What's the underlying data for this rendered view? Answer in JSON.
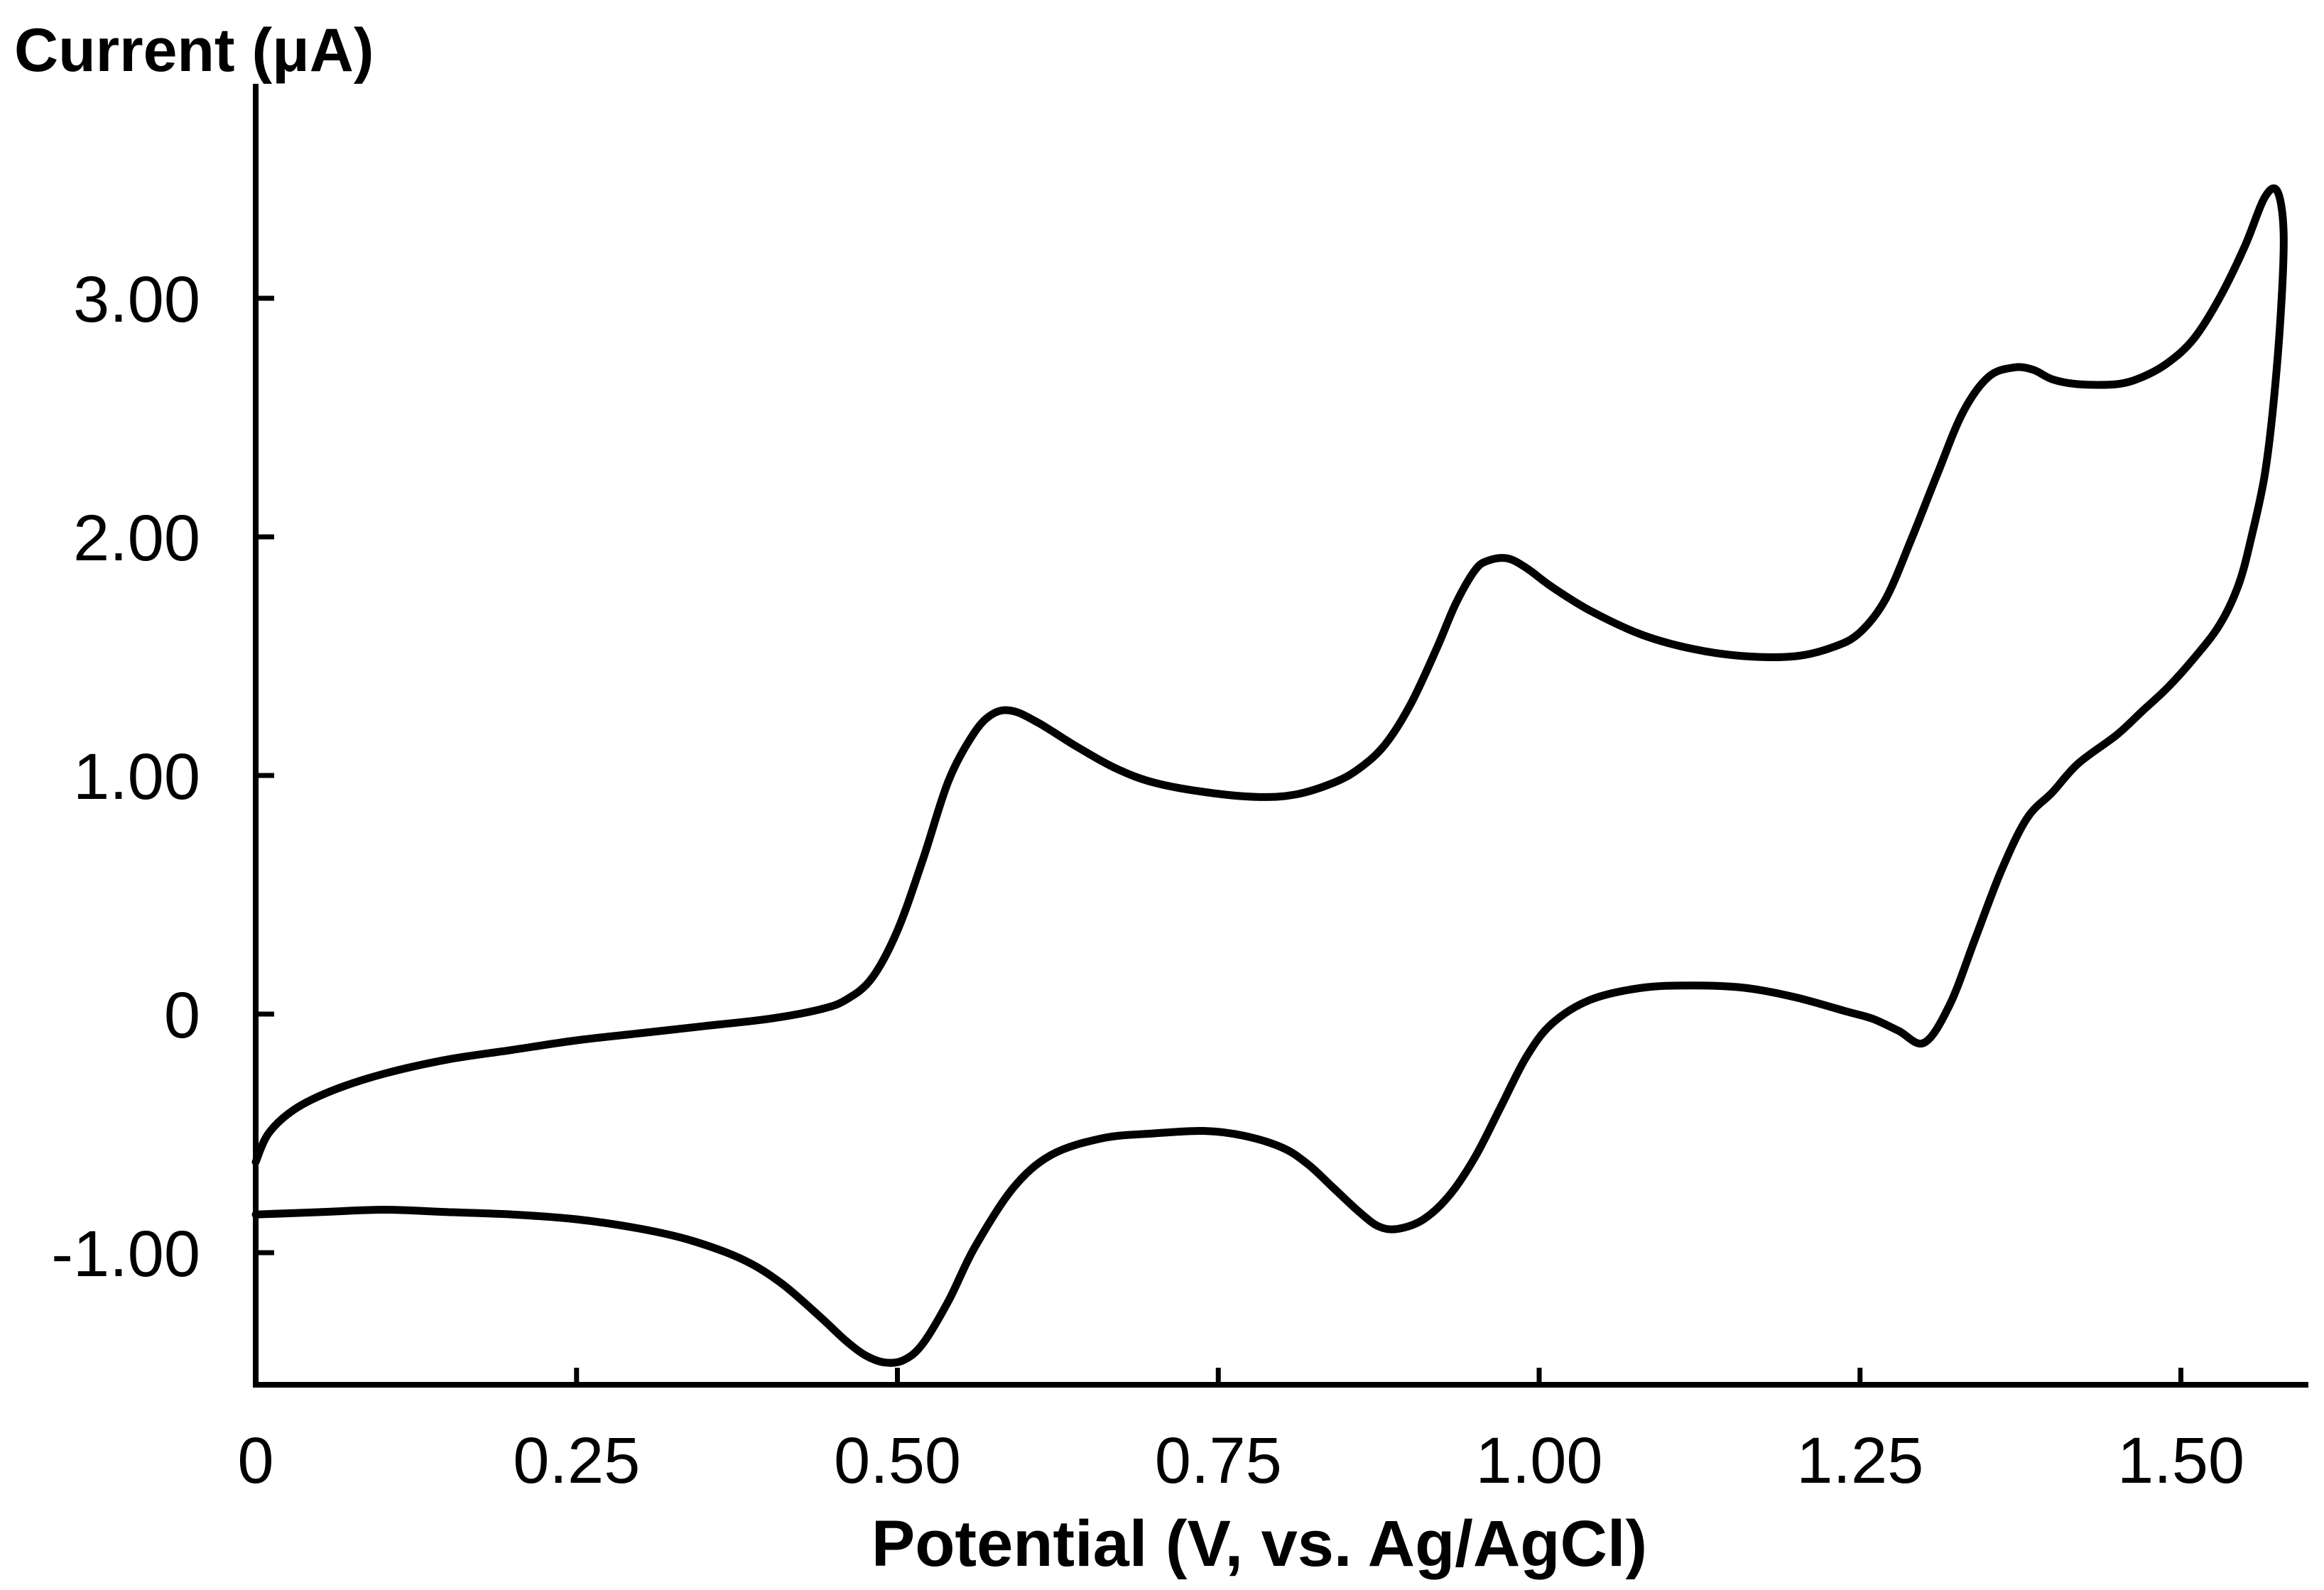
{
  "chart_data": {
    "type": "line",
    "ylabel": "Current (μA)",
    "xlabel": "Potential (V, vs. Ag/AgCl)",
    "xlim": [
      0,
      1.6
    ],
    "ylim": [
      -1.55,
      3.9
    ],
    "x_ticks": [
      {
        "value": 0,
        "label": "0"
      },
      {
        "value": 0.25,
        "label": "0.25"
      },
      {
        "value": 0.5,
        "label": "0.50"
      },
      {
        "value": 0.75,
        "label": "0.75"
      },
      {
        "value": 1.0,
        "label": "1.00"
      },
      {
        "value": 1.25,
        "label": "1.25"
      },
      {
        "value": 1.5,
        "label": "1.50"
      }
    ],
    "y_ticks": [
      {
        "value": -1,
        "label": "-1.00"
      },
      {
        "value": 0,
        "label": "0"
      },
      {
        "value": 1,
        "label": "1.00"
      },
      {
        "value": 2,
        "label": "2.00"
      },
      {
        "value": 3,
        "label": "3.00"
      }
    ],
    "grid": false,
    "legend": "none",
    "line_color": "#000000",
    "series": [
      {
        "x": [
          0.0,
          0.01,
          0.03,
          0.06,
          0.1,
          0.15,
          0.2,
          0.25,
          0.3,
          0.35,
          0.4,
          0.44,
          0.46,
          0.48,
          0.5,
          0.52,
          0.54,
          0.56,
          0.575,
          0.59,
          0.61,
          0.64,
          0.67,
          0.7,
          0.74,
          0.78,
          0.81,
          0.84,
          0.86,
          0.88,
          0.9,
          0.92,
          0.935,
          0.95,
          0.96,
          0.975,
          0.99,
          1.01,
          1.04,
          1.08,
          1.12,
          1.16,
          1.2,
          1.23,
          1.25,
          1.27,
          1.29,
          1.31,
          1.33,
          1.35,
          1.37,
          1.385,
          1.4,
          1.42,
          1.45,
          1.47,
          1.49,
          1.51,
          1.53,
          1.55,
          1.565,
          1.575,
          1.58,
          1.578,
          1.572,
          1.565,
          1.555,
          1.545,
          1.53,
          1.51,
          1.49,
          1.47,
          1.45,
          1.42,
          1.4,
          1.38,
          1.36,
          1.34,
          1.32,
          1.3,
          1.28,
          1.26,
          1.24,
          1.2,
          1.16,
          1.12,
          1.08,
          1.04,
          1.01,
          0.99,
          0.97,
          0.95,
          0.93,
          0.91,
          0.89,
          0.875,
          0.86,
          0.84,
          0.82,
          0.8,
          0.77,
          0.74,
          0.7,
          0.66,
          0.62,
          0.59,
          0.56,
          0.54,
          0.52,
          0.505,
          0.49,
          0.475,
          0.46,
          0.44,
          0.41,
          0.38,
          0.34,
          0.3,
          0.25,
          0.2,
          0.15,
          0.1,
          0.05,
          0.0
        ],
        "y": [
          -0.62,
          -0.5,
          -0.4,
          -0.32,
          -0.25,
          -0.19,
          -0.15,
          -0.11,
          -0.08,
          -0.05,
          -0.02,
          0.02,
          0.06,
          0.15,
          0.35,
          0.65,
          0.98,
          1.18,
          1.26,
          1.27,
          1.22,
          1.12,
          1.03,
          0.97,
          0.93,
          0.91,
          0.92,
          0.97,
          1.03,
          1.13,
          1.3,
          1.53,
          1.72,
          1.86,
          1.9,
          1.91,
          1.87,
          1.79,
          1.69,
          1.59,
          1.53,
          1.5,
          1.5,
          1.54,
          1.6,
          1.74,
          1.99,
          2.26,
          2.52,
          2.67,
          2.71,
          2.7,
          2.66,
          2.64,
          2.64,
          2.67,
          2.73,
          2.83,
          3.0,
          3.22,
          3.42,
          3.45,
          3.28,
          2.95,
          2.55,
          2.25,
          2.0,
          1.8,
          1.63,
          1.49,
          1.37,
          1.27,
          1.17,
          1.05,
          0.93,
          0.82,
          0.6,
          0.32,
          0.04,
          -0.12,
          -0.07,
          -0.02,
          0.01,
          0.07,
          0.11,
          0.12,
          0.11,
          0.06,
          -0.04,
          -0.18,
          -0.39,
          -0.6,
          -0.76,
          -0.86,
          -0.9,
          -0.89,
          -0.83,
          -0.73,
          -0.63,
          -0.56,
          -0.51,
          -0.49,
          -0.5,
          -0.52,
          -0.59,
          -0.73,
          -0.98,
          -1.2,
          -1.38,
          -1.45,
          -1.46,
          -1.43,
          -1.37,
          -1.27,
          -1.13,
          -1.03,
          -0.95,
          -0.9,
          -0.86,
          -0.84,
          -0.83,
          -0.82,
          -0.83,
          -0.84
        ]
      }
    ]
  }
}
